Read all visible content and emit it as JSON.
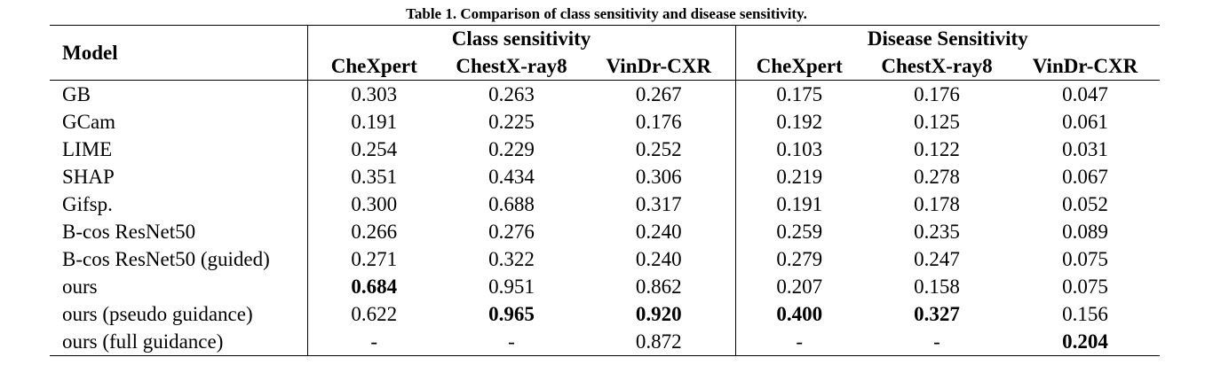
{
  "caption": "Table 1. Comparison of class sensitivity and disease sensitivity.",
  "header": {
    "model": "Model",
    "group1": "Class sensitivity",
    "group2": "Disease Sensitivity",
    "datasets": [
      "CheXpert",
      "ChestX-ray8",
      "VinDr-CXR",
      "CheXpert",
      "ChestX-ray8",
      "VinDr-CXR"
    ]
  },
  "rows": [
    {
      "model": "GB",
      "values": [
        "0.303",
        "0.263",
        "0.267",
        "0.175",
        "0.176",
        "0.047"
      ],
      "bold": []
    },
    {
      "model": "GCam",
      "values": [
        "0.191",
        "0.225",
        "0.176",
        "0.192",
        "0.125",
        "0.061"
      ],
      "bold": []
    },
    {
      "model": "LIME",
      "values": [
        "0.254",
        "0.229",
        "0.252",
        "0.103",
        "0.122",
        "0.031"
      ],
      "bold": []
    },
    {
      "model": "SHAP",
      "values": [
        "0.351",
        "0.434",
        "0.306",
        "0.219",
        "0.278",
        "0.067"
      ],
      "bold": []
    },
    {
      "model": "Gifsp.",
      "values": [
        "0.300",
        "0.688",
        "0.317",
        "0.191",
        "0.178",
        "0.052"
      ],
      "bold": []
    },
    {
      "model": "B-cos ResNet50",
      "values": [
        "0.266",
        "0.276",
        "0.240",
        "0.259",
        "0.235",
        "0.089"
      ],
      "bold": []
    },
    {
      "model": "B-cos ResNet50 (guided)",
      "values": [
        "0.271",
        "0.322",
        "0.240",
        "0.279",
        "0.247",
        "0.075"
      ],
      "bold": []
    },
    {
      "model": "ours",
      "values": [
        "0.684",
        "0.951",
        "0.862",
        "0.207",
        "0.158",
        "0.075"
      ],
      "bold": [
        0
      ]
    },
    {
      "model": "ours (pseudo guidance)",
      "values": [
        "0.622",
        "0.965",
        "0.920",
        "0.400",
        "0.327",
        "0.156"
      ],
      "bold": [
        1,
        2,
        3,
        4
      ]
    },
    {
      "model": "ours (full guidance)",
      "values": [
        "-",
        "-",
        "0.872",
        "-",
        "-",
        "0.204"
      ],
      "bold": [
        5
      ]
    }
  ]
}
